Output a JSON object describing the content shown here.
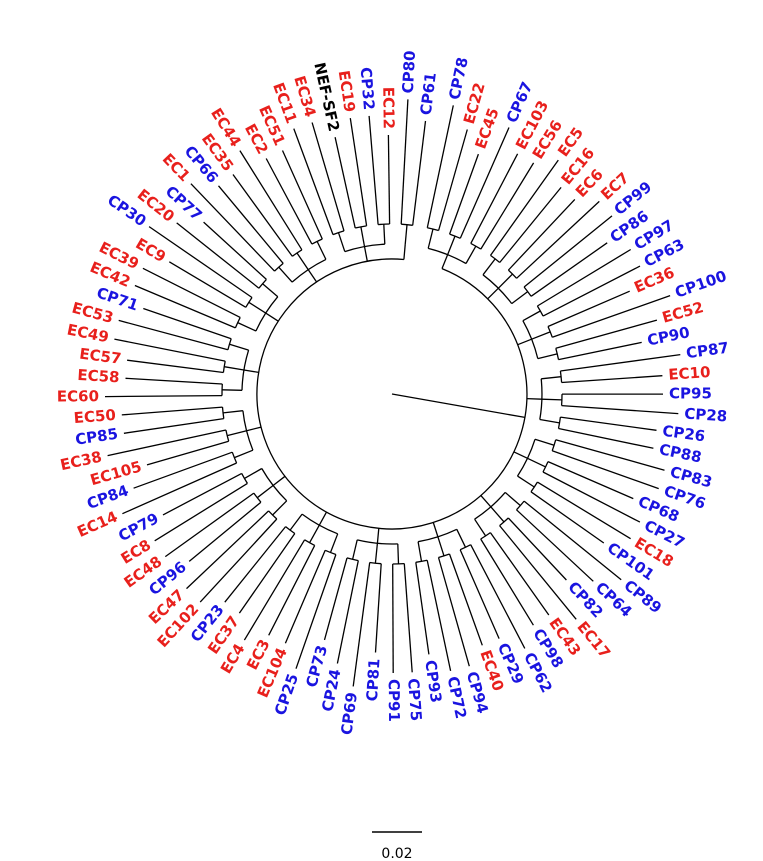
{
  "colors": {
    "EC": "#e8201c",
    "CP": "#1a14e0",
    "reference": "#000000"
  },
  "scale_bar": {
    "label": "0.02"
  },
  "leaves": [
    {
      "label": "CP78",
      "group": "CP"
    },
    {
      "label": "EC22",
      "group": "EC"
    },
    {
      "label": "EC45",
      "group": "EC"
    },
    {
      "label": "CP67",
      "group": "CP"
    },
    {
      "label": "EC103",
      "group": "EC"
    },
    {
      "label": "EC56",
      "group": "EC"
    },
    {
      "label": "EC5",
      "group": "EC"
    },
    {
      "label": "EC16",
      "group": "EC"
    },
    {
      "label": "EC6",
      "group": "EC"
    },
    {
      "label": "EC7",
      "group": "EC"
    },
    {
      "label": "CP99",
      "group": "CP"
    },
    {
      "label": "CP86",
      "group": "CP"
    },
    {
      "label": "CP97",
      "group": "CP"
    },
    {
      "label": "CP63",
      "group": "CP"
    },
    {
      "label": "EC36",
      "group": "EC"
    },
    {
      "label": "CP100",
      "group": "CP"
    },
    {
      "label": "EC52",
      "group": "EC"
    },
    {
      "label": "CP90",
      "group": "CP"
    },
    {
      "label": "CP87",
      "group": "CP"
    },
    {
      "label": "EC10",
      "group": "EC"
    },
    {
      "label": "CP95",
      "group": "CP"
    },
    {
      "label": "CP28",
      "group": "CP"
    },
    {
      "label": "CP26",
      "group": "CP"
    },
    {
      "label": "CP88",
      "group": "CP"
    },
    {
      "label": "CP83",
      "group": "CP"
    },
    {
      "label": "CP76",
      "group": "CP"
    },
    {
      "label": "CP68",
      "group": "CP"
    },
    {
      "label": "CP27",
      "group": "CP"
    },
    {
      "label": "EC18",
      "group": "EC"
    },
    {
      "label": "CP101",
      "group": "CP"
    },
    {
      "label": "CP89",
      "group": "CP"
    },
    {
      "label": "CP64",
      "group": "CP"
    },
    {
      "label": "CP82",
      "group": "CP"
    },
    {
      "label": "EC17",
      "group": "EC"
    },
    {
      "label": "EC43",
      "group": "EC"
    },
    {
      "label": "CP98",
      "group": "CP"
    },
    {
      "label": "CP62",
      "group": "CP"
    },
    {
      "label": "CP29",
      "group": "CP"
    },
    {
      "label": "EC40",
      "group": "EC"
    },
    {
      "label": "CP94",
      "group": "CP"
    },
    {
      "label": "CP72",
      "group": "CP"
    },
    {
      "label": "CP93",
      "group": "CP"
    },
    {
      "label": "CP75",
      "group": "CP"
    },
    {
      "label": "CP91",
      "group": "CP"
    },
    {
      "label": "CP81",
      "group": "CP"
    },
    {
      "label": "CP69",
      "group": "CP"
    },
    {
      "label": "CP24",
      "group": "CP"
    },
    {
      "label": "CP73",
      "group": "CP"
    },
    {
      "label": "CP25",
      "group": "CP"
    },
    {
      "label": "EC104",
      "group": "EC"
    },
    {
      "label": "EC3",
      "group": "EC"
    },
    {
      "label": "EC4",
      "group": "EC"
    },
    {
      "label": "EC37",
      "group": "EC"
    },
    {
      "label": "CP23",
      "group": "CP"
    },
    {
      "label": "EC102",
      "group": "EC"
    },
    {
      "label": "EC47",
      "group": "EC"
    },
    {
      "label": "CP96",
      "group": "CP"
    },
    {
      "label": "EC48",
      "group": "EC"
    },
    {
      "label": "EC8",
      "group": "EC"
    },
    {
      "label": "CP79",
      "group": "CP"
    },
    {
      "label": "EC14",
      "group": "EC"
    },
    {
      "label": "CP84",
      "group": "CP"
    },
    {
      "label": "EC105",
      "group": "EC"
    },
    {
      "label": "EC38",
      "group": "EC"
    },
    {
      "label": "CP85",
      "group": "CP"
    },
    {
      "label": "EC50",
      "group": "EC"
    },
    {
      "label": "EC60",
      "group": "EC"
    },
    {
      "label": "EC58",
      "group": "EC"
    },
    {
      "label": "EC57",
      "group": "EC"
    },
    {
      "label": "EC49",
      "group": "EC"
    },
    {
      "label": "EC53",
      "group": "EC"
    },
    {
      "label": "CP71",
      "group": "CP"
    },
    {
      "label": "EC42",
      "group": "EC"
    },
    {
      "label": "EC39",
      "group": "EC"
    },
    {
      "label": "EC9",
      "group": "EC"
    },
    {
      "label": "CP30",
      "group": "CP"
    },
    {
      "label": "EC20",
      "group": "EC"
    },
    {
      "label": "CP77",
      "group": "CP"
    },
    {
      "label": "EC1",
      "group": "EC"
    },
    {
      "label": "CP66",
      "group": "CP"
    },
    {
      "label": "EC35",
      "group": "EC"
    },
    {
      "label": "EC44",
      "group": "EC"
    },
    {
      "label": "EC2",
      "group": "EC"
    },
    {
      "label": "EC51",
      "group": "EC"
    },
    {
      "label": "EC11",
      "group": "EC"
    },
    {
      "label": "EC34",
      "group": "EC"
    },
    {
      "label": "NEF-SF2",
      "group": "reference"
    },
    {
      "label": "EC19",
      "group": "EC"
    },
    {
      "label": "CP32",
      "group": "CP"
    },
    {
      "label": "EC12",
      "group": "EC"
    },
    {
      "label": "CP80",
      "group": "CP"
    },
    {
      "label": "CP61",
      "group": "CP"
    }
  ]
}
